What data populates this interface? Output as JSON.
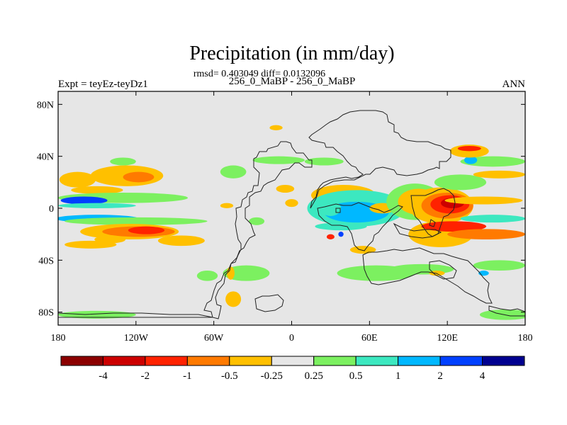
{
  "chart_data": {
    "type": "heatmap",
    "title": "Precipitation (in mm/day)",
    "stats_line": "rmsd= 0.403049 diff= 0.0132096",
    "subtitle": "256_0_MaBP - 256_0_MaBP",
    "left_label": "Expt = teyEz-teyDz1",
    "right_label": "ANN",
    "x_axis": {
      "ticks": [
        {
          "value": -180,
          "label": "180"
        },
        {
          "value": -120,
          "label": "120W"
        },
        {
          "value": -60,
          "label": "60W"
        },
        {
          "value": 0,
          "label": "0"
        },
        {
          "value": 60,
          "label": "60E"
        },
        {
          "value": 120,
          "label": "120E"
        },
        {
          "value": 180,
          "label": "180"
        }
      ],
      "range": [
        -180,
        180
      ]
    },
    "y_axis": {
      "ticks": [
        {
          "value": 80,
          "label": "80N"
        },
        {
          "value": 40,
          "label": "40N"
        },
        {
          "value": 0,
          "label": "0"
        },
        {
          "value": -40,
          "label": "40S"
        },
        {
          "value": -80,
          "label": "80S"
        }
      ],
      "range": [
        -90,
        90
      ]
    },
    "colorbar": {
      "colors": [
        "#8b0000",
        "#cc0000",
        "#ff2200",
        "#ff7a00",
        "#ffc000",
        "#e6e6e6",
        "#7cf060",
        "#3ce8c0",
        "#00b8ff",
        "#0040ff",
        "#000090"
      ],
      "labels": [
        "-4",
        "-2",
        "-1",
        "-0.5",
        "-0.25",
        "0.25",
        "0.5",
        "1",
        "2",
        "4"
      ]
    },
    "background_color": "#e6e6e6",
    "anomalies": [
      {
        "lon": -165,
        "lat": 22,
        "rx": 14,
        "ry": 6,
        "v": -0.3
      },
      {
        "lon": -127,
        "lat": 25,
        "rx": 28,
        "ry": 8,
        "v": -0.4
      },
      {
        "lon": -118,
        "lat": 24,
        "rx": 12,
        "ry": 4,
        "v": -0.8
      },
      {
        "lon": -150,
        "lat": 14,
        "rx": 20,
        "ry": 3,
        "v": -0.5
      },
      {
        "lon": -130,
        "lat": 8,
        "rx": 50,
        "ry": 4,
        "v": 0.35
      },
      {
        "lon": -160,
        "lat": 6,
        "rx": 18,
        "ry": 3,
        "v": 2.5
      },
      {
        "lon": -150,
        "lat": 2,
        "rx": 30,
        "ry": 2,
        "v": 0.7
      },
      {
        "lon": -150,
        "lat": -8,
        "rx": 32,
        "ry": 3,
        "v": 1.5
      },
      {
        "lon": -120,
        "lat": -10,
        "rx": 55,
        "ry": 3,
        "v": 0.35
      },
      {
        "lon": -125,
        "lat": -18,
        "rx": 38,
        "ry": 6,
        "v": -0.4
      },
      {
        "lon": -118,
        "lat": -18,
        "rx": 28,
        "ry": 4,
        "v": -0.7
      },
      {
        "lon": -112,
        "lat": -17,
        "rx": 14,
        "ry": 3,
        "v": -1.5
      },
      {
        "lon": -140,
        "lat": -24,
        "rx": 12,
        "ry": 3,
        "v": -0.3
      },
      {
        "lon": -155,
        "lat": -28,
        "rx": 20,
        "ry": 3,
        "v": -0.3
      },
      {
        "lon": -85,
        "lat": -25,
        "rx": 18,
        "ry": 4,
        "v": -0.3
      },
      {
        "lon": -150,
        "lat": -82,
        "rx": 30,
        "ry": 3,
        "v": 0.35
      },
      {
        "lon": -130,
        "lat": 36,
        "rx": 10,
        "ry": 3,
        "v": 0.35
      },
      {
        "lon": -50,
        "lat": 2,
        "rx": 5,
        "ry": 2,
        "v": -0.3
      },
      {
        "lon": -45,
        "lat": 28,
        "rx": 10,
        "ry": 5,
        "v": 0.35
      },
      {
        "lon": -35,
        "lat": -50,
        "rx": 18,
        "ry": 6,
        "v": 0.35
      },
      {
        "lon": -65,
        "lat": -52,
        "rx": 8,
        "ry": 4,
        "v": 0.35
      },
      {
        "lon": -47,
        "lat": -50,
        "rx": 3,
        "ry": 5,
        "v": -0.3
      },
      {
        "lon": -27,
        "lat": -10,
        "rx": 6,
        "ry": 3,
        "v": 0.3
      },
      {
        "lon": -45,
        "lat": -70,
        "rx": 6,
        "ry": 6,
        "v": -0.35
      },
      {
        "lon": -12,
        "lat": 62,
        "rx": 5,
        "ry": 2,
        "v": -0.3
      },
      {
        "lon": -5,
        "lat": 15,
        "rx": 7,
        "ry": 3,
        "v": -0.3
      },
      {
        "lon": 0,
        "lat": 4,
        "rx": 5,
        "ry": 3,
        "v": -0.3
      },
      {
        "lon": -10,
        "lat": 37,
        "rx": 20,
        "ry": 3,
        "v": 0.35
      },
      {
        "lon": 25,
        "lat": 36,
        "rx": 15,
        "ry": 3,
        "v": 0.35
      },
      {
        "lon": 40,
        "lat": 10,
        "rx": 25,
        "ry": 8,
        "v": -0.4
      },
      {
        "lon": 50,
        "lat": 0,
        "rx": 38,
        "ry": 14,
        "v": 0.5
      },
      {
        "lon": 50,
        "lat": -3,
        "rx": 25,
        "ry": 8,
        "v": 1.2
      },
      {
        "lon": 38,
        "lat": -14,
        "rx": 20,
        "ry": 3,
        "v": 0.7
      },
      {
        "lon": 30,
        "lat": 0,
        "rx": 8,
        "ry": 6,
        "v": 0.6
      },
      {
        "lon": 38,
        "lat": -20,
        "rx": 2,
        "ry": 2,
        "v": 3
      },
      {
        "lon": 30,
        "lat": -22,
        "rx": 3,
        "ry": 2,
        "v": -1.5
      },
      {
        "lon": 70,
        "lat": 0,
        "rx": 10,
        "ry": 4,
        "v": -0.5
      },
      {
        "lon": 55,
        "lat": -32,
        "rx": 10,
        "ry": 3,
        "v": -0.3
      },
      {
        "lon": 65,
        "lat": -50,
        "rx": 30,
        "ry": 6,
        "v": 0.35
      },
      {
        "lon": 100,
        "lat": -47,
        "rx": 25,
        "ry": 4,
        "v": 0.35
      },
      {
        "lon": 95,
        "lat": 5,
        "rx": 22,
        "ry": 14,
        "v": 0.35
      },
      {
        "lon": 98,
        "lat": 5,
        "rx": 16,
        "ry": 10,
        "v": -0.3
      },
      {
        "lon": 115,
        "lat": 2,
        "rx": 25,
        "ry": 14,
        "v": -0.4
      },
      {
        "lon": 120,
        "lat": 2,
        "rx": 20,
        "ry": 10,
        "v": -0.7
      },
      {
        "lon": 122,
        "lat": 3,
        "rx": 15,
        "ry": 7,
        "v": -1.5
      },
      {
        "lon": 124,
        "lat": 4,
        "rx": 9,
        "ry": 4,
        "v": -3
      },
      {
        "lon": 115,
        "lat": -20,
        "rx": 25,
        "ry": 10,
        "v": -0.4
      },
      {
        "lon": 125,
        "lat": -14,
        "rx": 25,
        "ry": 4,
        "v": -1.5
      },
      {
        "lon": 150,
        "lat": -20,
        "rx": 30,
        "ry": 4,
        "v": -0.6
      },
      {
        "lon": 148,
        "lat": 6,
        "rx": 30,
        "ry": 3,
        "v": -0.5
      },
      {
        "lon": 155,
        "lat": -8,
        "rx": 25,
        "ry": 3,
        "v": 0.7
      },
      {
        "lon": 130,
        "lat": 20,
        "rx": 20,
        "ry": 6,
        "v": 0.35
      },
      {
        "lon": 160,
        "lat": 26,
        "rx": 20,
        "ry": 3,
        "v": -0.3
      },
      {
        "lon": 155,
        "lat": 36,
        "rx": 25,
        "ry": 4,
        "v": 0.35
      },
      {
        "lon": 138,
        "lat": 37,
        "rx": 5,
        "ry": 3,
        "v": 1.5
      },
      {
        "lon": 137,
        "lat": 44,
        "rx": 15,
        "ry": 5,
        "v": -0.5
      },
      {
        "lon": 137,
        "lat": 46,
        "rx": 9,
        "ry": 2,
        "v": -1.2
      },
      {
        "lon": 112,
        "lat": -50,
        "rx": 6,
        "ry": 2,
        "v": -0.3
      },
      {
        "lon": 148,
        "lat": -50,
        "rx": 4,
        "ry": 2,
        "v": 1.2
      },
      {
        "lon": 160,
        "lat": -44,
        "rx": 20,
        "ry": 4,
        "v": 0.35
      },
      {
        "lon": 165,
        "lat": -82,
        "rx": 20,
        "ry": 4,
        "v": 0.35
      }
    ]
  }
}
